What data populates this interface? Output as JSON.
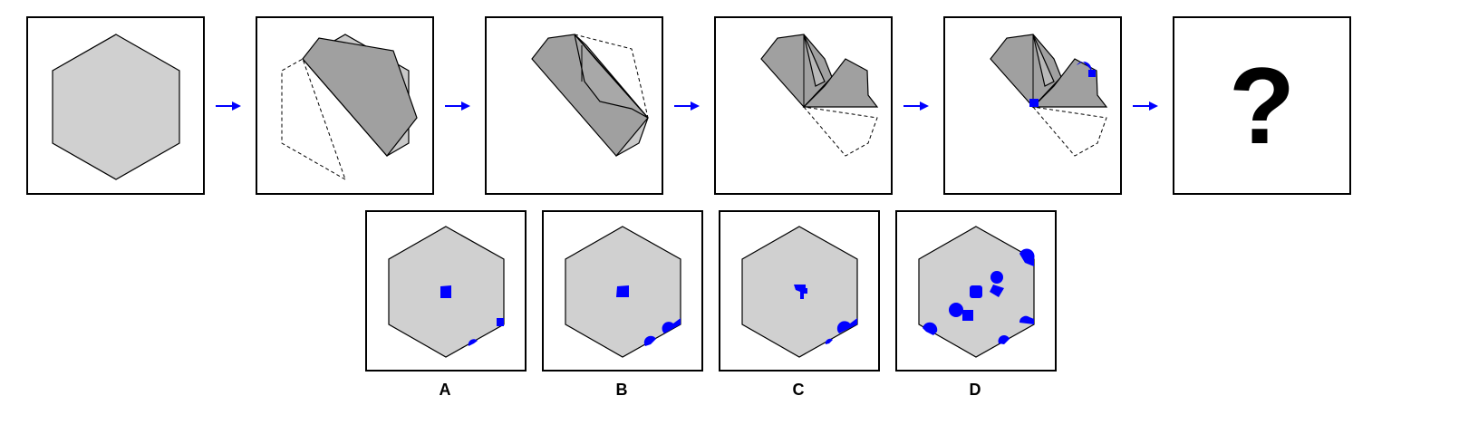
{
  "question": {
    "mark": "?"
  },
  "options": [
    {
      "label": "A"
    },
    {
      "label": "B"
    },
    {
      "label": "C"
    },
    {
      "label": "D"
    }
  ],
  "colors": {
    "hexagon_fill": "#d0d0d0",
    "fold_fill": "#a0a0a0",
    "hole_color": "#0000ff",
    "arrow_color": "#0000ff",
    "outline": "#000000"
  }
}
